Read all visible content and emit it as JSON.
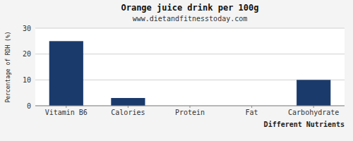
{
  "chart_data": {
    "type": "bar",
    "title": "Orange juice drink per 100g",
    "subtitle": "www.dietandfitnesstoday.com",
    "xlabel": "Different Nutrients",
    "ylabel": "Percentage of RDH (%)",
    "categories": [
      "Vitamin B6",
      "Calories",
      "Protein",
      "Fat",
      "Carbohydrate"
    ],
    "values": [
      25,
      3,
      0,
      0,
      10
    ],
    "color": "#1a3a6b",
    "ylim": [
      0,
      30
    ],
    "yticks": [
      0,
      10,
      20,
      30
    ],
    "grid": true
  }
}
